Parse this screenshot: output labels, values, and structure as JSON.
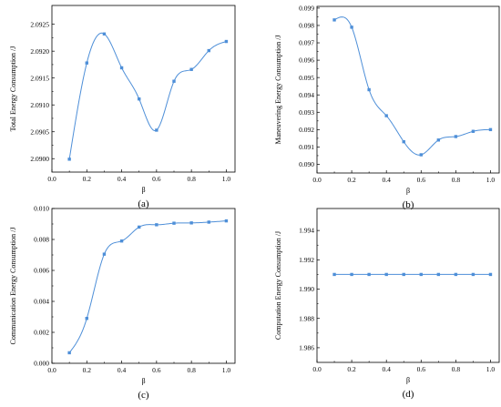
{
  "chart_data": [
    {
      "type": "line",
      "caption": "(a)",
      "xlabel": "β",
      "ylabel": "Total Energy Consumption /J",
      "xlim": [
        0.0,
        1.05
      ],
      "ylim": [
        2.08975,
        2.09285
      ],
      "xticks": [
        0.0,
        0.2,
        0.4,
        0.6,
        0.8,
        1.0
      ],
      "xtick_labels": [
        "0.0",
        "0.2",
        "0.4",
        "0.6",
        "0.8",
        "1.0"
      ],
      "yticks": [
        2.09,
        2.0905,
        2.091,
        2.0915,
        2.092,
        2.0925
      ],
      "ytick_labels": [
        "2.0900",
        "2.0905",
        "2.0910",
        "2.0915",
        "2.0920",
        "2.0925"
      ],
      "grid": false,
      "series": [
        {
          "x": [
            0.1,
            0.2,
            0.3,
            0.4,
            0.5,
            0.6,
            0.7,
            0.8,
            0.9,
            1.0
          ],
          "values": [
            2.08999,
            2.09178,
            2.09232,
            2.09169,
            2.09111,
            2.09053,
            2.09144,
            2.09166,
            2.09201,
            2.09218
          ],
          "color": "#4e8fd8"
        }
      ]
    },
    {
      "type": "line",
      "caption": "(b)",
      "xlabel": "β",
      "ylabel": "Maneuvering Energy Consumption /J",
      "xlim": [
        0.0,
        1.05
      ],
      "ylim": [
        0.0895,
        0.0991
      ],
      "xticks": [
        0.0,
        0.2,
        0.4,
        0.6,
        0.8,
        1.0
      ],
      "xtick_labels": [
        "0.0",
        "0.2",
        "0.4",
        "0.6",
        "0.8",
        "1.0"
      ],
      "yticks": [
        0.09,
        0.091,
        0.092,
        0.093,
        0.094,
        0.095,
        0.096,
        0.097,
        0.098,
        0.099
      ],
      "ytick_labels": [
        "0.090",
        "0.091",
        "0.092",
        "0.093",
        "0.094",
        "0.095",
        "0.096",
        "0.097",
        "0.098",
        "0.099"
      ],
      "grid": false,
      "series": [
        {
          "x": [
            0.1,
            0.2,
            0.3,
            0.4,
            0.5,
            0.6,
            0.7,
            0.8,
            0.9,
            1.0
          ],
          "values": [
            0.09832,
            0.0979,
            0.0943,
            0.0928,
            0.0913,
            0.09055,
            0.0914,
            0.0916,
            0.0919,
            0.092
          ],
          "color": "#4e8fd8"
        }
      ]
    },
    {
      "type": "line",
      "caption": "(c)",
      "xlabel": "β",
      "ylabel": "Communication Energy Consumption /J",
      "xlim": [
        0.0,
        1.05
      ],
      "ylim": [
        0.0,
        0.01
      ],
      "xticks": [
        0.0,
        0.2,
        0.4,
        0.6,
        0.8,
        1.0
      ],
      "xtick_labels": [
        "0.0",
        "0.2",
        "0.4",
        "0.6",
        "0.8",
        "1.0"
      ],
      "yticks": [
        0.0,
        0.002,
        0.004,
        0.006,
        0.008,
        0.01
      ],
      "ytick_labels": [
        "0.000",
        "0.002",
        "0.004",
        "0.006",
        "0.008",
        "0.010"
      ],
      "grid": false,
      "series": [
        {
          "x": [
            0.1,
            0.2,
            0.3,
            0.4,
            0.5,
            0.6,
            0.7,
            0.8,
            0.9,
            1.0
          ],
          "values": [
            0.00068,
            0.0029,
            0.00705,
            0.0079,
            0.0088,
            0.00895,
            0.00905,
            0.00907,
            0.00912,
            0.0092
          ],
          "color": "#4e8fd8"
        }
      ]
    },
    {
      "type": "line",
      "caption": "(d)",
      "xlabel": "β",
      "ylabel": "Computation Energy Consumption /J",
      "xlim": [
        0.0,
        1.05
      ],
      "ylim": [
        1.985,
        1.9955
      ],
      "xticks": [
        0.0,
        0.2,
        0.4,
        0.6,
        0.8,
        1.0
      ],
      "xtick_labels": [
        "0.0",
        "0.2",
        "0.4",
        "0.6",
        "0.8",
        "1.0"
      ],
      "yticks": [
        1.986,
        1.988,
        1.99,
        1.992,
        1.994
      ],
      "ytick_labels": [
        "1.986",
        "1.988",
        "1.990",
        "1.992",
        "1.994"
      ],
      "grid": false,
      "series": [
        {
          "x": [
            0.1,
            0.2,
            0.3,
            0.4,
            0.5,
            0.6,
            0.7,
            0.8,
            0.9,
            1.0
          ],
          "values": [
            1.991,
            1.991,
            1.991,
            1.991,
            1.991,
            1.991,
            1.991,
            1.991,
            1.991,
            1.991
          ],
          "color": "#4e8fd8"
        }
      ]
    }
  ]
}
